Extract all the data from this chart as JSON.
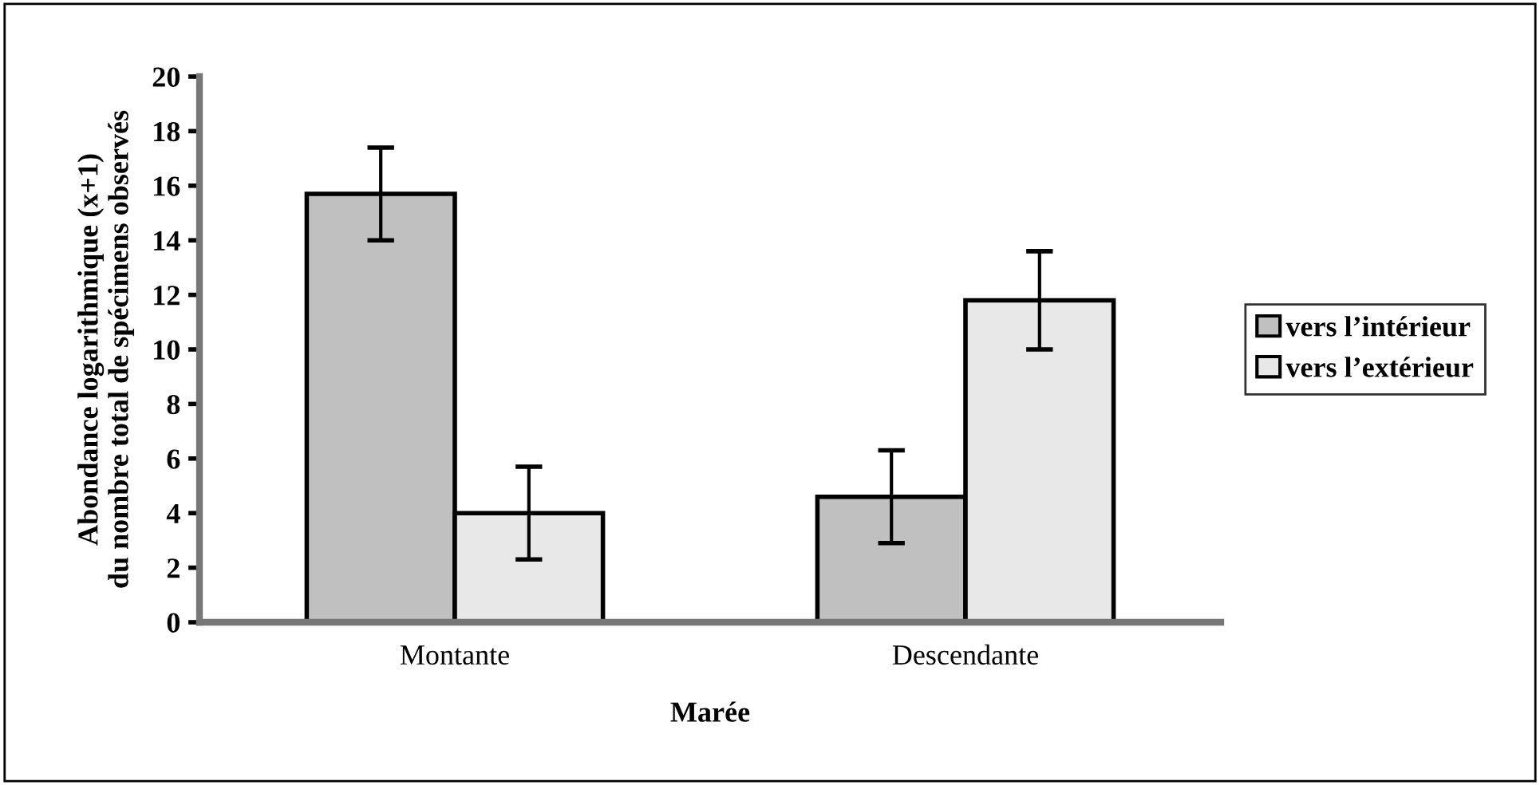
{
  "chart_data": {
    "type": "bar",
    "xlabel": "Marée",
    "ylabel": "Abondance logarithmique (x+1)\ndu nombre total de spécimens observés",
    "categories": [
      "Montante",
      "Descendante"
    ],
    "series": [
      {
        "name": "vers l’intérieur",
        "color": "#c0c0c0",
        "values": [
          15.7,
          4.6
        ],
        "errors": [
          1.7,
          1.7
        ]
      },
      {
        "name": "vers l’extérieur",
        "color": "#e8e8e8",
        "values": [
          4.0,
          11.8
        ],
        "errors": [
          1.7,
          1.8
        ]
      }
    ],
    "ylim": [
      0,
      20
    ],
    "yticks": [
      0,
      2,
      4,
      6,
      8,
      10,
      12,
      14,
      16,
      18,
      20
    ],
    "grid": false,
    "legend": "right"
  }
}
